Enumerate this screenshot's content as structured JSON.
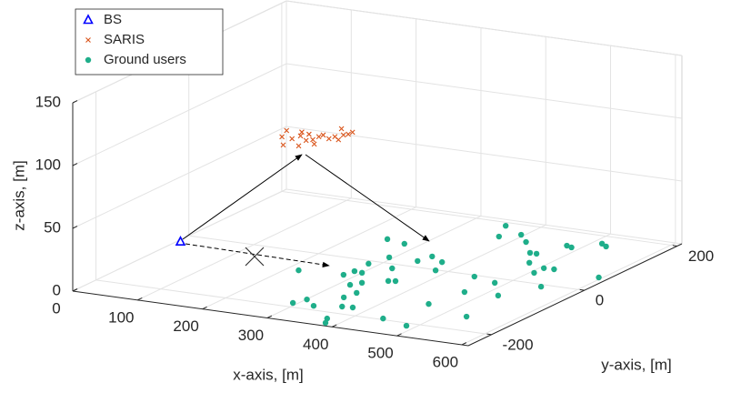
{
  "chart_data": {
    "type": "scatter3d",
    "xlabel": "x-axis, [m]",
    "ylabel": "y-axis, [m]",
    "zlabel": "z-axis, [m]",
    "xlim": [
      0,
      610
    ],
    "ylim": [
      -250,
      210
    ],
    "zlim": [
      0,
      150
    ],
    "xticks": [
      0,
      100,
      200,
      300,
      400,
      500,
      600
    ],
    "yticks": [
      -200,
      0,
      200
    ],
    "zticks": [
      0,
      50,
      100,
      150
    ],
    "grid": true,
    "legend": "upper left",
    "series": [
      {
        "name": "BS",
        "color": "#0000ff",
        "marker": "triangle",
        "x": [
          5
        ],
        "y": [
          -25
        ],
        "z": [
          0
        ]
      },
      {
        "name": "SARIS",
        "color": "#d95319",
        "marker": "x",
        "x": [
          231,
          241,
          263,
          258,
          261,
          253,
          284,
          279,
          267,
          285,
          285,
          298,
          286,
          302,
          304,
          292,
          310,
          314,
          314,
          316
        ],
        "y": [
          -112,
          -136,
          -164,
          -138,
          -124,
          -110,
          -160,
          -137,
          -114,
          -131,
          -118,
          -146,
          -110,
          -120,
          -110,
          -79,
          -100,
          -95,
          -86,
          -119
        ],
        "z": [
          120,
          120,
          120,
          120,
          120,
          120,
          120,
          120,
          120,
          120,
          120,
          120,
          120,
          120,
          120,
          120,
          120,
          120,
          120,
          120
        ]
      },
      {
        "name": "Ground users",
        "color": "#1fae8a",
        "marker": "circle",
        "x": [
          218,
          293,
          301,
          325,
          373,
          382,
          361,
          340,
          283,
          316,
          287,
          300,
          325,
          285,
          344,
          376,
          246,
          294,
          325,
          352,
          361,
          278,
          337,
          343,
          382,
          369,
          440,
          486,
          458,
          535,
          471,
          444,
          520,
          484,
          354,
          373,
          395,
          419,
          475,
          451,
          461,
          506,
          506,
          549,
          521,
          477,
          487,
          595,
          514,
          526
        ],
        "y": [
          -68,
          -185,
          -166,
          -185,
          -223,
          -239,
          -174,
          -141,
          -62,
          -94,
          -44,
          -46,
          -81,
          -11,
          -119,
          -172,
          84,
          21,
          -16,
          -62,
          -59,
          76,
          22,
          45,
          -2,
          30,
          -196,
          -210,
          -123,
          -149,
          -64,
          -5,
          -60,
          -17,
          188,
          147,
          164,
          141,
          70,
          105,
          105,
          37,
          58,
          -8,
          59,
          148,
          144,
          52,
          172,
          164
        ],
        "z": [
          0,
          0,
          0,
          0,
          0,
          0,
          0,
          0,
          0,
          0,
          0,
          0,
          0,
          0,
          0,
          0,
          0,
          0,
          0,
          0,
          0,
          0,
          0,
          0,
          0,
          0,
          0,
          0,
          0,
          0,
          0,
          0,
          0,
          0,
          0,
          0,
          0,
          0,
          0,
          0,
          0,
          0,
          0,
          0,
          0,
          0,
          0,
          0,
          0,
          0
        ]
      }
    ]
  }
}
